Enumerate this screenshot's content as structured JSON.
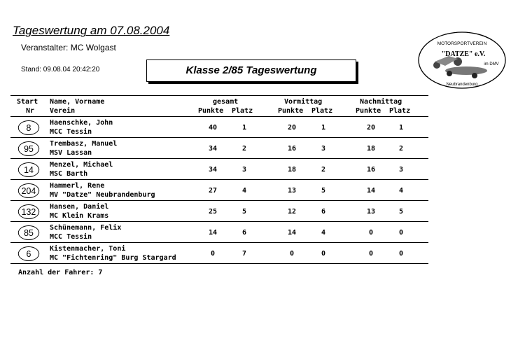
{
  "header": {
    "title": "Tageswertung am 07.08.2004",
    "organizer": "Veranstalter:  MC Wolgast",
    "stand": "Stand:  09.08.04 20:42:20",
    "class_title": "Klasse 2/85 Tageswertung",
    "logo_text": [
      "MOTORSPORTVEREIN",
      "\"DATZE\" e.V.",
      "im DMV",
      "Neubrandenburg"
    ]
  },
  "columns": {
    "start": "Start",
    "nr": "Nr",
    "name": "Name, Vorname",
    "verein": "Verein",
    "gesamt": "gesamt",
    "vormittag": "Vormittag",
    "nachmittag": "Nachmittag",
    "punkte": "Punkte",
    "platz": "Platz"
  },
  "rows": [
    {
      "nr": "8",
      "name": "Haenschke, John",
      "verein": "MCC Tessin",
      "g_punkte": "40",
      "g_platz": "1",
      "v_punkte": "20",
      "v_platz": "1",
      "n_punkte": "20",
      "n_platz": "1"
    },
    {
      "nr": "95",
      "name": "Trembasz, Manuel",
      "verein": "MSV Lassan",
      "g_punkte": "34",
      "g_platz": "2",
      "v_punkte": "16",
      "v_platz": "3",
      "n_punkte": "18",
      "n_platz": "2"
    },
    {
      "nr": "14",
      "name": "Menzel, Michael",
      "verein": "MSC Barth",
      "g_punkte": "34",
      "g_platz": "3",
      "v_punkte": "18",
      "v_platz": "2",
      "n_punkte": "16",
      "n_platz": "3"
    },
    {
      "nr": "204",
      "name": "Hammerl, Rene",
      "verein": "MV \"Datze\" Neubrandenburg",
      "g_punkte": "27",
      "g_platz": "4",
      "v_punkte": "13",
      "v_platz": "5",
      "n_punkte": "14",
      "n_platz": "4"
    },
    {
      "nr": "132",
      "name": "Hansen, Daniel",
      "verein": "MC Klein Krams",
      "g_punkte": "25",
      "g_platz": "5",
      "v_punkte": "12",
      "v_platz": "6",
      "n_punkte": "13",
      "n_platz": "5"
    },
    {
      "nr": "85",
      "name": "Schünemann, Felix",
      "verein": "MCC Tessin",
      "g_punkte": "14",
      "g_platz": "6",
      "v_punkte": "14",
      "v_platz": "4",
      "n_punkte": "0",
      "n_platz": "0"
    },
    {
      "nr": "6",
      "name": "Kistenmacher, Toni",
      "verein": "MC \"Fichtenring\" Burg Stargard",
      "g_punkte": "0",
      "g_platz": "7",
      "v_punkte": "0",
      "v_platz": "0",
      "n_punkte": "0",
      "n_platz": "0"
    }
  ],
  "footer": {
    "count_label": "Anzahl der Fahrer: 7"
  }
}
